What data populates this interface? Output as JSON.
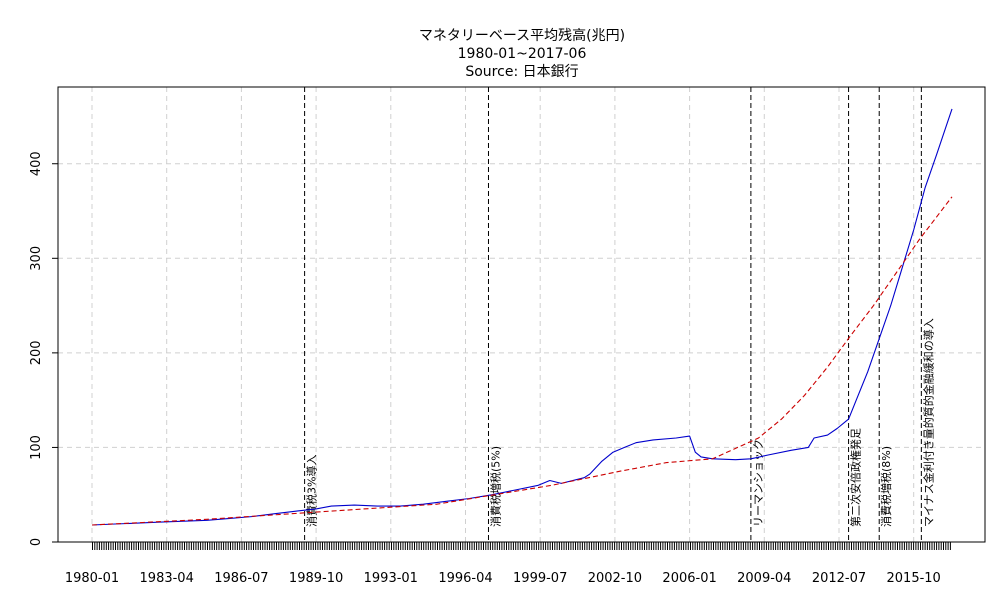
{
  "chart_data": {
    "type": "line",
    "title": "マネタリーベース平均残高(兆円)",
    "subtitle": "1980-01~2017-06",
    "source": "Source: 日本銀行",
    "xlabel": "",
    "ylabel": "",
    "x_range": [
      "1980-01",
      "2017-06"
    ],
    "ylim": [
      0,
      470
    ],
    "grid": true,
    "x_tick_labels": [
      "1980-01",
      "1983-04",
      "1986-07",
      "1989-10",
      "1993-01",
      "1996-04",
      "1999-07",
      "2002-10",
      "2006-01",
      "2009-04",
      "2012-07",
      "2015-10"
    ],
    "y_tick_labels": [
      0,
      100,
      200,
      300,
      400
    ],
    "events": [
      {
        "date": "1989-04",
        "label": "消費税3%導入"
      },
      {
        "date": "1997-04",
        "label": "消費税増税(5%)"
      },
      {
        "date": "2008-09",
        "label": "リーマンショック"
      },
      {
        "date": "2012-12",
        "label": "第二次安倍政権発足"
      },
      {
        "date": "2014-04",
        "label": "消費税増税(8%)"
      },
      {
        "date": "2016-02",
        "label": "マイナス金利付き量的質的金融緩和の導入"
      }
    ],
    "series": [
      {
        "color": "#0000cc",
        "style": "solid",
        "x": [
          "1980-01",
          "1981-01",
          "1982-01",
          "1983-01",
          "1984-01",
          "1985-01",
          "1986-01",
          "1987-01",
          "1988-01",
          "1989-01",
          "1989-10",
          "1990-06",
          "1991-06",
          "1992-06",
          "1993-06",
          "1994-06",
          "1995-06",
          "1996-06",
          "1997-06",
          "1998-06",
          "1999-06",
          "1999-12",
          "2000-06",
          "2001-06",
          "2001-09",
          "2002-03",
          "2002-09",
          "2003-03",
          "2003-09",
          "2004-06",
          "2005-06",
          "2006-01",
          "2006-04",
          "2006-07",
          "2007-01",
          "2008-01",
          "2008-09",
          "2009-06",
          "2010-06",
          "2011-03",
          "2011-06",
          "2012-01",
          "2012-06",
          "2012-12",
          "2013-04",
          "2013-10",
          "2014-04",
          "2014-10",
          "2015-04",
          "2015-10",
          "2016-04",
          "2016-10",
          "2017-06"
        ],
        "values": [
          18,
          19,
          20,
          21,
          22,
          23,
          25,
          27,
          30,
          33,
          35,
          38,
          39,
          38,
          38,
          40,
          43,
          46,
          50,
          55,
          60,
          65,
          62,
          68,
          72,
          85,
          95,
          100,
          105,
          108,
          110,
          112,
          95,
          90,
          88,
          87,
          88,
          92,
          97,
          100,
          110,
          113,
          120,
          130,
          150,
          180,
          215,
          250,
          290,
          330,
          375,
          410,
          458
        ]
      },
      {
        "color": "#cc0000",
        "style": "dashed",
        "x": [
          "1980-01",
          "1985-01",
          "1990-01",
          "1995-01",
          "2000-01",
          "2003-01",
          "2005-01",
          "2007-01",
          "2009-01",
          "2010-01",
          "2011-01",
          "2012-01",
          "2013-01",
          "2014-01",
          "2015-01",
          "2016-01",
          "2017-06"
        ],
        "values": [
          18,
          24,
          32,
          40,
          60,
          75,
          84,
          88,
          110,
          130,
          155,
          185,
          218,
          250,
          285,
          320,
          365
        ]
      }
    ]
  }
}
